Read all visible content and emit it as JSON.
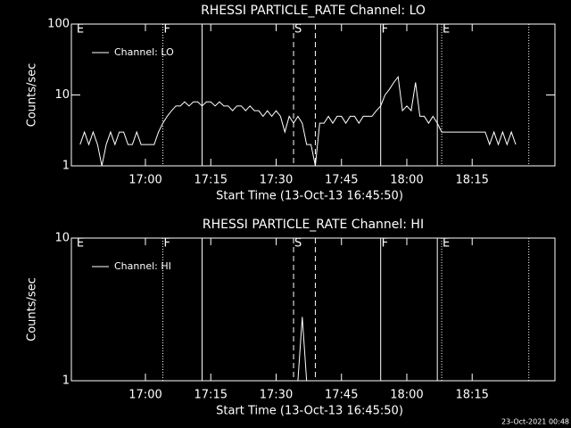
{
  "chart_data": [
    {
      "type": "line",
      "title": "RHESSI PARTICLE_RATE Channel: LO",
      "xlabel": "Start Time (13-Oct-13 16:45:50)",
      "ylabel": "Counts/sec",
      "log_y": true,
      "xlim": [
        "16:43",
        "18:34"
      ],
      "ylim": [
        1,
        100
      ],
      "xticks": [
        "17:00",
        "17:15",
        "17:30",
        "17:45",
        "18:00",
        "18:15"
      ],
      "yticks": [
        1,
        10,
        100
      ],
      "legend": "upper left",
      "markers": [
        {
          "x": "17:04",
          "style": "dotted"
        },
        {
          "x": "17:13",
          "style": "solid"
        },
        {
          "x": "17:34",
          "style": "dashed"
        },
        {
          "x": "17:39",
          "style": "dashed"
        },
        {
          "x": "17:54",
          "style": "solid"
        },
        {
          "x": "18:07",
          "style": "solid"
        },
        {
          "x": "18:08",
          "style": "dotted"
        },
        {
          "x": "18:28",
          "style": "dotted"
        }
      ],
      "annotations": [
        {
          "text": "E",
          "x": "16:44"
        },
        {
          "text": "F",
          "x": "17:04"
        },
        {
          "text": "S",
          "x": "17:34"
        },
        {
          "text": "F",
          "x": "17:54"
        },
        {
          "text": "E",
          "x": "18:08"
        }
      ],
      "series": [
        {
          "name": "Channel: LO",
          "color": "#ffffff",
          "x": [
            "16:45",
            "16:46",
            "16:47",
            "16:48",
            "16:49",
            "16:50",
            "16:51",
            "16:52",
            "16:53",
            "16:54",
            "16:55",
            "16:56",
            "16:57",
            "16:58",
            "16:59",
            "17:00",
            "17:01",
            "17:02",
            "17:03",
            "17:04",
            "17:05",
            "17:06",
            "17:07",
            "17:08",
            "17:09",
            "17:10",
            "17:11",
            "17:12",
            "17:13",
            "17:14",
            "17:15",
            "17:16",
            "17:17",
            "17:18",
            "17:19",
            "17:20",
            "17:21",
            "17:22",
            "17:23",
            "17:24",
            "17:25",
            "17:26",
            "17:27",
            "17:28",
            "17:29",
            "17:30",
            "17:31",
            "17:32",
            "17:33",
            "17:34",
            "17:35",
            "17:36",
            "17:37",
            "17:38",
            "17:39",
            "17:40",
            "17:41",
            "17:42",
            "17:43",
            "17:44",
            "17:45",
            "17:46",
            "17:47",
            "17:48",
            "17:49",
            "17:50",
            "17:51",
            "17:52",
            "17:53",
            "17:54",
            "17:55",
            "17:56",
            "17:57",
            "17:58",
            "17:59",
            "18:00",
            "18:01",
            "18:02",
            "18:03",
            "18:04",
            "18:05",
            "18:06",
            "18:07",
            "18:08",
            "18:09",
            "18:10",
            "18:11",
            "18:12",
            "18:13",
            "18:14",
            "18:15",
            "18:16",
            "18:17",
            "18:18",
            "18:19",
            "18:20",
            "18:21",
            "18:22",
            "18:23",
            "18:24",
            "18:25"
          ],
          "values": [
            2,
            3,
            2,
            3,
            2,
            1,
            2,
            3,
            2,
            3,
            3,
            2,
            2,
            3,
            2,
            2,
            2,
            2,
            3,
            4,
            5,
            6,
            7,
            7,
            8,
            7,
            8,
            8,
            7,
            8,
            8,
            7,
            8,
            7,
            7,
            6,
            7,
            7,
            6,
            7,
            6,
            6,
            5,
            6,
            5,
            6,
            5,
            3,
            5,
            4,
            5,
            4,
            2,
            2,
            1,
            4,
            4,
            5,
            4,
            5,
            5,
            4,
            5,
            5,
            4,
            5,
            5,
            5,
            6,
            7,
            10,
            12,
            15,
            18,
            6,
            7,
            6,
            15,
            5,
            5,
            4,
            5,
            4,
            3,
            3,
            3,
            3,
            3,
            3,
            3,
            3,
            3,
            3,
            3,
            2,
            3,
            2,
            3,
            2,
            3,
            2
          ]
        }
      ]
    },
    {
      "type": "line",
      "title": "RHESSI PARTICLE_RATE Channel: HI",
      "xlabel": "Start Time (13-Oct-13 16:45:50)",
      "ylabel": "Counts/sec",
      "log_y": true,
      "xlim": [
        "16:43",
        "18:34"
      ],
      "ylim": [
        1,
        10
      ],
      "xticks": [
        "17:00",
        "17:15",
        "17:30",
        "17:45",
        "18:00",
        "18:15"
      ],
      "yticks": [
        1,
        10
      ],
      "legend": "upper left",
      "markers": [
        {
          "x": "17:04",
          "style": "dotted"
        },
        {
          "x": "17:13",
          "style": "solid"
        },
        {
          "x": "17:34",
          "style": "dashed"
        },
        {
          "x": "17:39",
          "style": "dashed"
        },
        {
          "x": "17:54",
          "style": "solid"
        },
        {
          "x": "18:07",
          "style": "solid"
        },
        {
          "x": "18:08",
          "style": "dotted"
        },
        {
          "x": "18:28",
          "style": "dotted"
        }
      ],
      "annotations": [
        {
          "text": "E",
          "x": "16:44"
        },
        {
          "text": "F",
          "x": "17:04"
        },
        {
          "text": "S",
          "x": "17:34"
        },
        {
          "text": "F",
          "x": "17:54"
        },
        {
          "text": "E",
          "x": "18:08"
        }
      ],
      "series": [
        {
          "name": "Channel: HI",
          "color": "#ffffff",
          "x": [
            "17:35",
            "17:36",
            "17:37"
          ],
          "values": [
            1,
            2.8,
            1
          ]
        }
      ]
    }
  ],
  "footer": "23-Oct-2021 00:48"
}
